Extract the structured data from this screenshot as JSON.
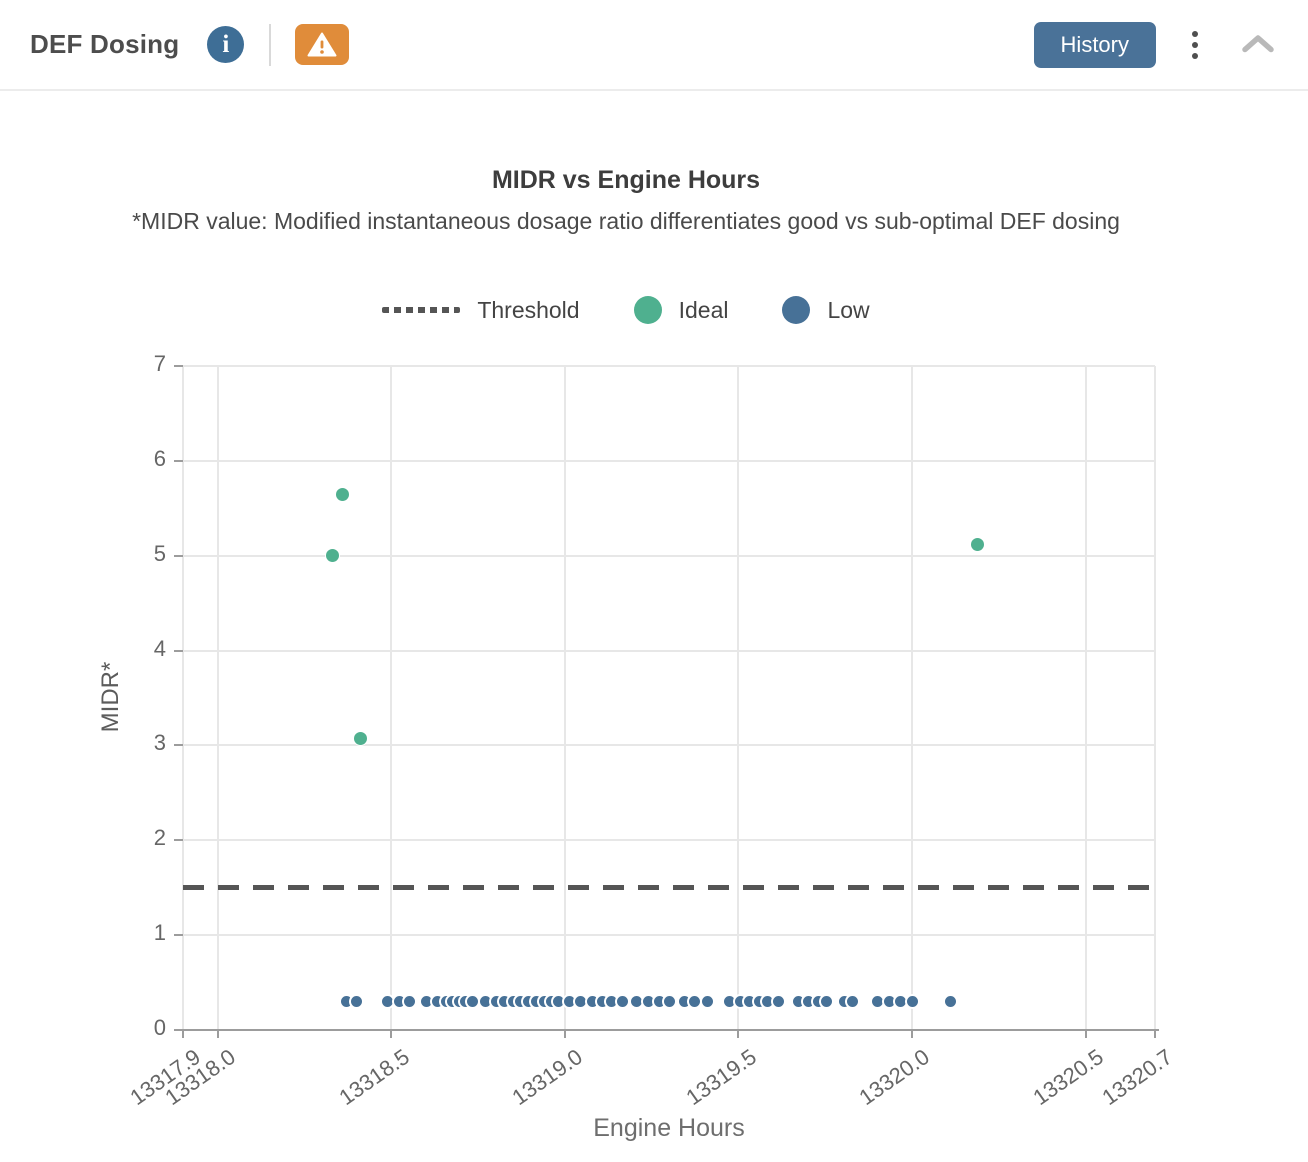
{
  "header": {
    "title": "DEF Dosing",
    "history_button": "History",
    "icons": {
      "info": "info-icon",
      "warning": "warning-icon",
      "menu": "kebab-menu-icon",
      "collapse": "chevron-up-icon"
    }
  },
  "colors": {
    "ideal_green": "#4fb08f",
    "low_blue": "#477197",
    "threshold_gray": "#555555",
    "history_blue": "#4a7298",
    "warning_orange": "#e08c3a",
    "info_blue": "#3e6e96"
  },
  "chart_data": {
    "type": "scatter",
    "title": "MIDR vs Engine Hours",
    "subtitle": "*MIDR value: Modified instantaneous dosage ratio differentiates good vs sub-optimal DEF dosing",
    "xlabel": "Engine Hours",
    "ylabel": "MIDR*",
    "xlim": [
      13317.9,
      13320.7
    ],
    "ylim": [
      0,
      7
    ],
    "x_ticks": [
      13317.9,
      13318.0,
      13318.5,
      13319.0,
      13319.5,
      13320.0,
      13320.5,
      13320.7
    ],
    "x_tick_labels": [
      "13317.9",
      "13318.0",
      "13318.5",
      "13319.0",
      "13319.5",
      "13320.0",
      "13320.5",
      "13320.7"
    ],
    "y_ticks": [
      0,
      1,
      2,
      3,
      4,
      5,
      6,
      7
    ],
    "grid": true,
    "legend_position": "top",
    "threshold": {
      "label": "Threshold",
      "value": 1.5,
      "style": "dashed",
      "color": "#555555"
    },
    "series": [
      {
        "name": "Ideal",
        "color": "#4fb08f",
        "marker_size": 15,
        "marker_stroke": 1,
        "points": [
          [
            13318.36,
            5.65
          ],
          [
            13318.33,
            5.0
          ],
          [
            13318.41,
            3.07
          ],
          [
            13320.19,
            5.12
          ]
        ]
      },
      {
        "name": "Low",
        "color": "#477197",
        "marker_size": 15,
        "marker_stroke": 2,
        "points": [
          [
            13318.371,
            0.3
          ],
          [
            13318.4,
            0.3
          ],
          [
            13318.488,
            0.3
          ],
          [
            13318.523,
            0.3
          ],
          [
            13318.552,
            0.3
          ],
          [
            13318.602,
            0.3
          ],
          [
            13318.634,
            0.3
          ],
          [
            13318.658,
            0.3
          ],
          [
            13318.675,
            0.3
          ],
          [
            13318.696,
            0.3
          ],
          [
            13318.713,
            0.3
          ],
          [
            13318.734,
            0.3
          ],
          [
            13318.772,
            0.3
          ],
          [
            13318.804,
            0.3
          ],
          [
            13318.827,
            0.3
          ],
          [
            13318.851,
            0.3
          ],
          [
            13318.871,
            0.3
          ],
          [
            13318.895,
            0.3
          ],
          [
            13318.918,
            0.3
          ],
          [
            13318.941,
            0.3
          ],
          [
            13318.962,
            0.3
          ],
          [
            13318.983,
            0.3
          ],
          [
            13319.012,
            0.3
          ],
          [
            13319.044,
            0.3
          ],
          [
            13319.079,
            0.3
          ],
          [
            13319.108,
            0.3
          ],
          [
            13319.135,
            0.3
          ],
          [
            13319.167,
            0.3
          ],
          [
            13319.205,
            0.3
          ],
          [
            13319.24,
            0.3
          ],
          [
            13319.272,
            0.3
          ],
          [
            13319.301,
            0.3
          ],
          [
            13319.345,
            0.3
          ],
          [
            13319.374,
            0.3
          ],
          [
            13319.41,
            0.3
          ],
          [
            13319.474,
            0.3
          ],
          [
            13319.506,
            0.3
          ],
          [
            13319.532,
            0.3
          ],
          [
            13319.562,
            0.3
          ],
          [
            13319.585,
            0.3
          ],
          [
            13319.614,
            0.3
          ],
          [
            13319.673,
            0.3
          ],
          [
            13319.702,
            0.3
          ],
          [
            13319.731,
            0.3
          ],
          [
            13319.755,
            0.3
          ],
          [
            13319.805,
            0.3
          ],
          [
            13319.828,
            0.3
          ],
          [
            13319.901,
            0.3
          ],
          [
            13319.936,
            0.3
          ],
          [
            13319.966,
            0.3
          ],
          [
            13320.001,
            0.3
          ],
          [
            13320.112,
            0.3
          ]
        ]
      }
    ]
  }
}
